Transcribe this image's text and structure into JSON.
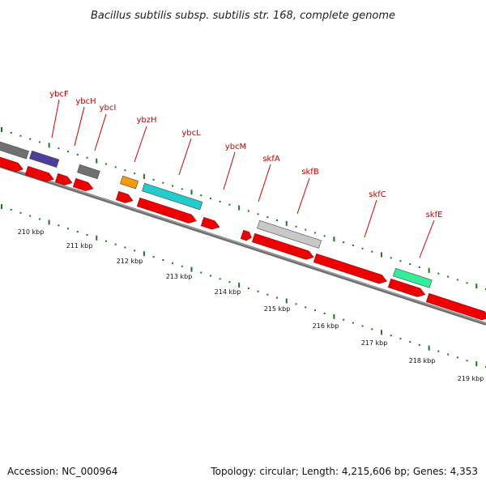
{
  "title": "Bacillus subtilis subsp. subtilis str. 168, complete genome",
  "footer": {
    "accession": "Accession: NC_000964",
    "info": "Topology: circular; Length: 4,215,606 bp; Genes: 4,353"
  },
  "colors": {
    "forward_gene": "#ee0000",
    "label": "#cc0000",
    "label_leader": "#cc0000",
    "tick": "#1a7a1a",
    "backbone": "#777777",
    "gene_gray": "#707070",
    "gene_purple": "#4b3f99",
    "gene_orange": "#ff9900",
    "gene_cyan": "#22cccc",
    "gene_light_gray": "#c8c8c8",
    "gene_green": "#33ee99"
  },
  "scale_labels": [
    "210 kbp",
    "211 kbp",
    "212 kbp",
    "213 kbp",
    "214 kbp",
    "215 kbp",
    "216 kbp",
    "217 kbp",
    "218 kbp",
    "219 kbp"
  ],
  "gene_labels": [
    "ybcF",
    "ybcH",
    "ybcI",
    "ybzH",
    "ybcL",
    "ybcM",
    "skfA",
    "skfB",
    "skfC",
    "skfE"
  ]
}
